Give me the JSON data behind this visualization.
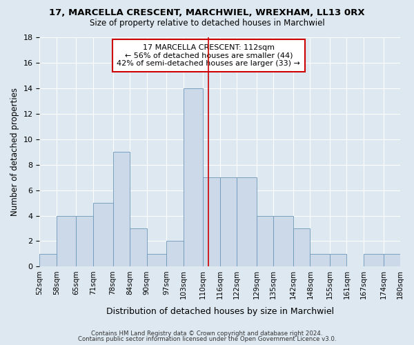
{
  "title": "17, MARCELLA CRESCENT, MARCHWIEL, WREXHAM, LL13 0RX",
  "subtitle": "Size of property relative to detached houses in Marchwiel",
  "xlabel": "Distribution of detached houses by size in Marchwiel",
  "ylabel": "Number of detached properties",
  "bin_labels": [
    "52sqm",
    "58sqm",
    "65sqm",
    "71sqm",
    "78sqm",
    "84sqm",
    "90sqm",
    "97sqm",
    "103sqm",
    "110sqm",
    "116sqm",
    "122sqm",
    "129sqm",
    "135sqm",
    "142sqm",
    "148sqm",
    "155sqm",
    "161sqm",
    "167sqm",
    "174sqm",
    "180sqm"
  ],
  "bin_edges": [
    52,
    58,
    65,
    71,
    78,
    84,
    90,
    97,
    103,
    110,
    116,
    122,
    129,
    135,
    142,
    148,
    155,
    161,
    167,
    174,
    180
  ],
  "counts": [
    1,
    4,
    4,
    5,
    9,
    3,
    1,
    2,
    14,
    7,
    7,
    7,
    4,
    4,
    3,
    1,
    1,
    0,
    1,
    1,
    0
  ],
  "bar_color": "#ccd9e8",
  "bar_edgecolor": "#6b96b8",
  "property_size": 112,
  "vline_color": "#cc0000",
  "annotation_line1": "17 MARCELLA CRESCENT: 112sqm",
  "annotation_line2": "← 56% of detached houses are smaller (44)",
  "annotation_line3": "42% of semi-detached houses are larger (33) →",
  "annotation_boxcolor": "white",
  "annotation_edgecolor": "#cc0000",
  "ylim": [
    0,
    18
  ],
  "yticks": [
    0,
    2,
    4,
    6,
    8,
    10,
    12,
    14,
    16,
    18
  ],
  "background_color": "#dde8f0",
  "plot_bg_color": "#dde8f0",
  "footer1": "Contains HM Land Registry data © Crown copyright and database right 2024.",
  "footer2": "Contains public sector information licensed under the Open Government Licence v3.0."
}
